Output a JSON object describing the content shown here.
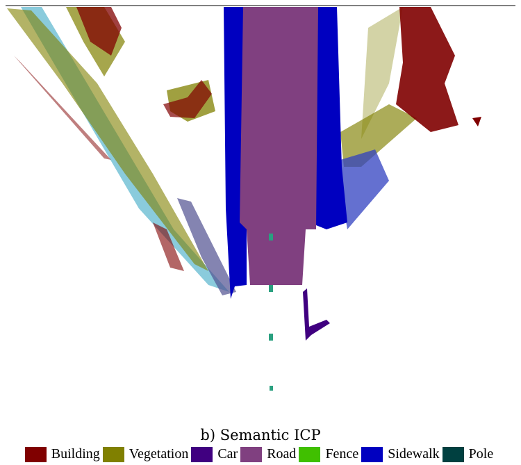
{
  "caption": "b) Semantic ICP",
  "legend": [
    {
      "label": "Building",
      "color": "#800000"
    },
    {
      "label": "Vegetation",
      "color": "#808000"
    },
    {
      "label": "Car",
      "color": "#400080"
    },
    {
      "label": "Road",
      "color": "#804080"
    },
    {
      "label": "Fence",
      "color": "#40c000"
    },
    {
      "label": "Sidewalk",
      "color": "#0000c0"
    },
    {
      "label": "Pole",
      "color": "#004040"
    }
  ]
}
